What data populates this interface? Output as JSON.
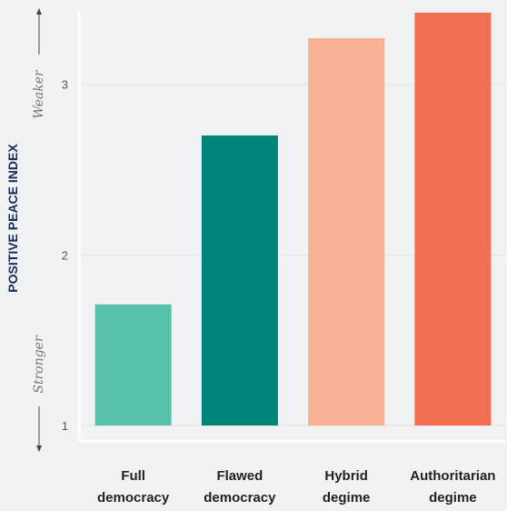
{
  "chart_data": {
    "type": "bar",
    "ylabel": "POSITIVE PEACE INDEX",
    "ylim": [
      1,
      3.43
    ],
    "yticks": [
      1,
      2,
      3
    ],
    "grid": true,
    "annotations": {
      "top": "Weaker",
      "bottom": "Stronger"
    },
    "categories": [
      {
        "line1": "Full",
        "line2": "democracy"
      },
      {
        "line1": "Flawed",
        "line2": "democracy"
      },
      {
        "line1": "Hybrid",
        "line2": "degime"
      },
      {
        "line1": "Authoritarian",
        "line2": "degime"
      }
    ],
    "values": [
      1.71,
      2.7,
      3.27,
      3.42
    ],
    "colors": [
      "#56c2ab",
      "#00857a",
      "#f9b196",
      "#f36f52"
    ]
  }
}
